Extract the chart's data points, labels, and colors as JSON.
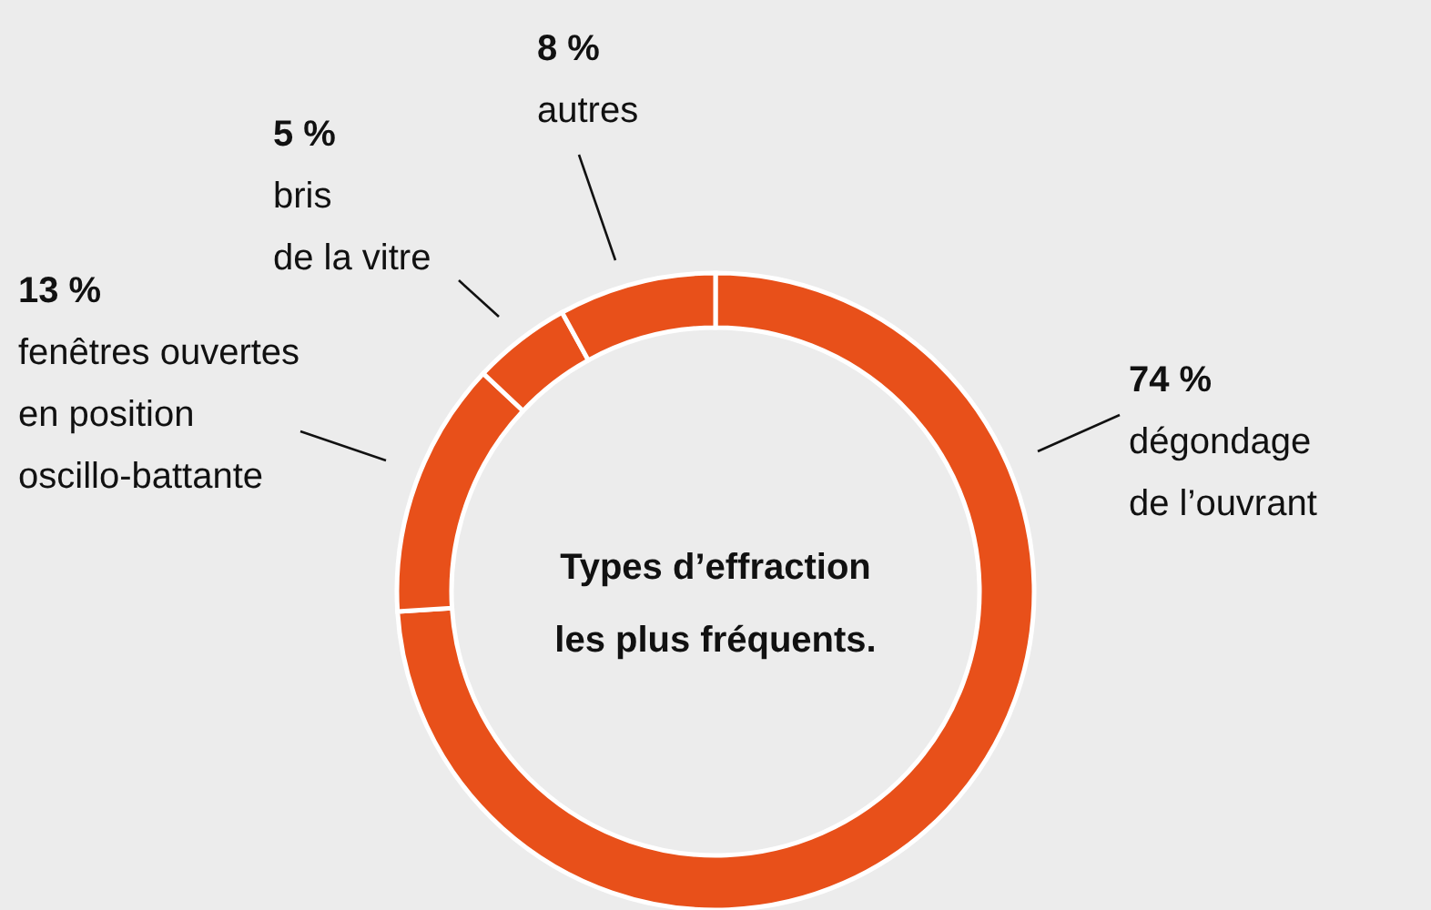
{
  "chart_data": {
    "type": "donut",
    "title": "Types d’effraction\nles plus fréquents.",
    "categories": [
      "dégondage\nde l’ouvrant",
      "fenêtres ouvertes\nen position\noscillo-battante",
      "bris\nde la vitre",
      "autres"
    ],
    "values": [
      74,
      13,
      5,
      8
    ],
    "value_labels": [
      "74 %",
      "13 %",
      "5 %",
      "8 %"
    ],
    "colors": [
      "#e8501a",
      "#e8501a",
      "#e8501a",
      "#e8501a"
    ]
  }
}
